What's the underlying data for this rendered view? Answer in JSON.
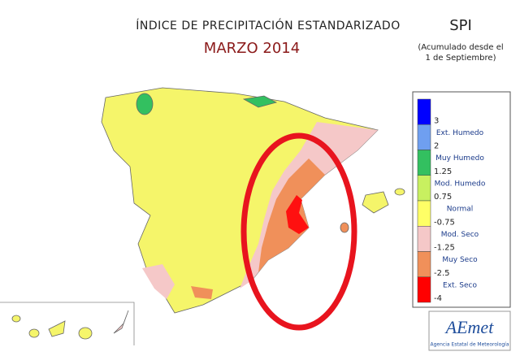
{
  "header": {
    "title": "ÍNDICE DE PRECIPITACIÓN ESTANDARIZADO",
    "subtitle": "MARZO 2014",
    "index": "SPI",
    "note_lines": [
      "(Acumulado desde el",
      "1 de Septiembre)"
    ]
  },
  "legend": {
    "colors": [
      "#0000ff",
      "#6f9ff0",
      "#33c060",
      "#c8f060",
      "#ffff66",
      "#f5c8c8",
      "#f0905a",
      "#ff0000"
    ],
    "ticks": [
      3,
      2,
      1.25,
      0.75,
      -0.75,
      -1.25,
      -2.5,
      -4
    ],
    "labels": [
      "Ext. Humedo",
      "Muy Humedo",
      "Mod. Humedo",
      "Normal",
      "Mod. Seco",
      "Muy Seco",
      "Ext. Seco"
    ]
  },
  "logo": {
    "name": "AEmet",
    "agency": "Agencia Estatal de Meteorología"
  }
}
